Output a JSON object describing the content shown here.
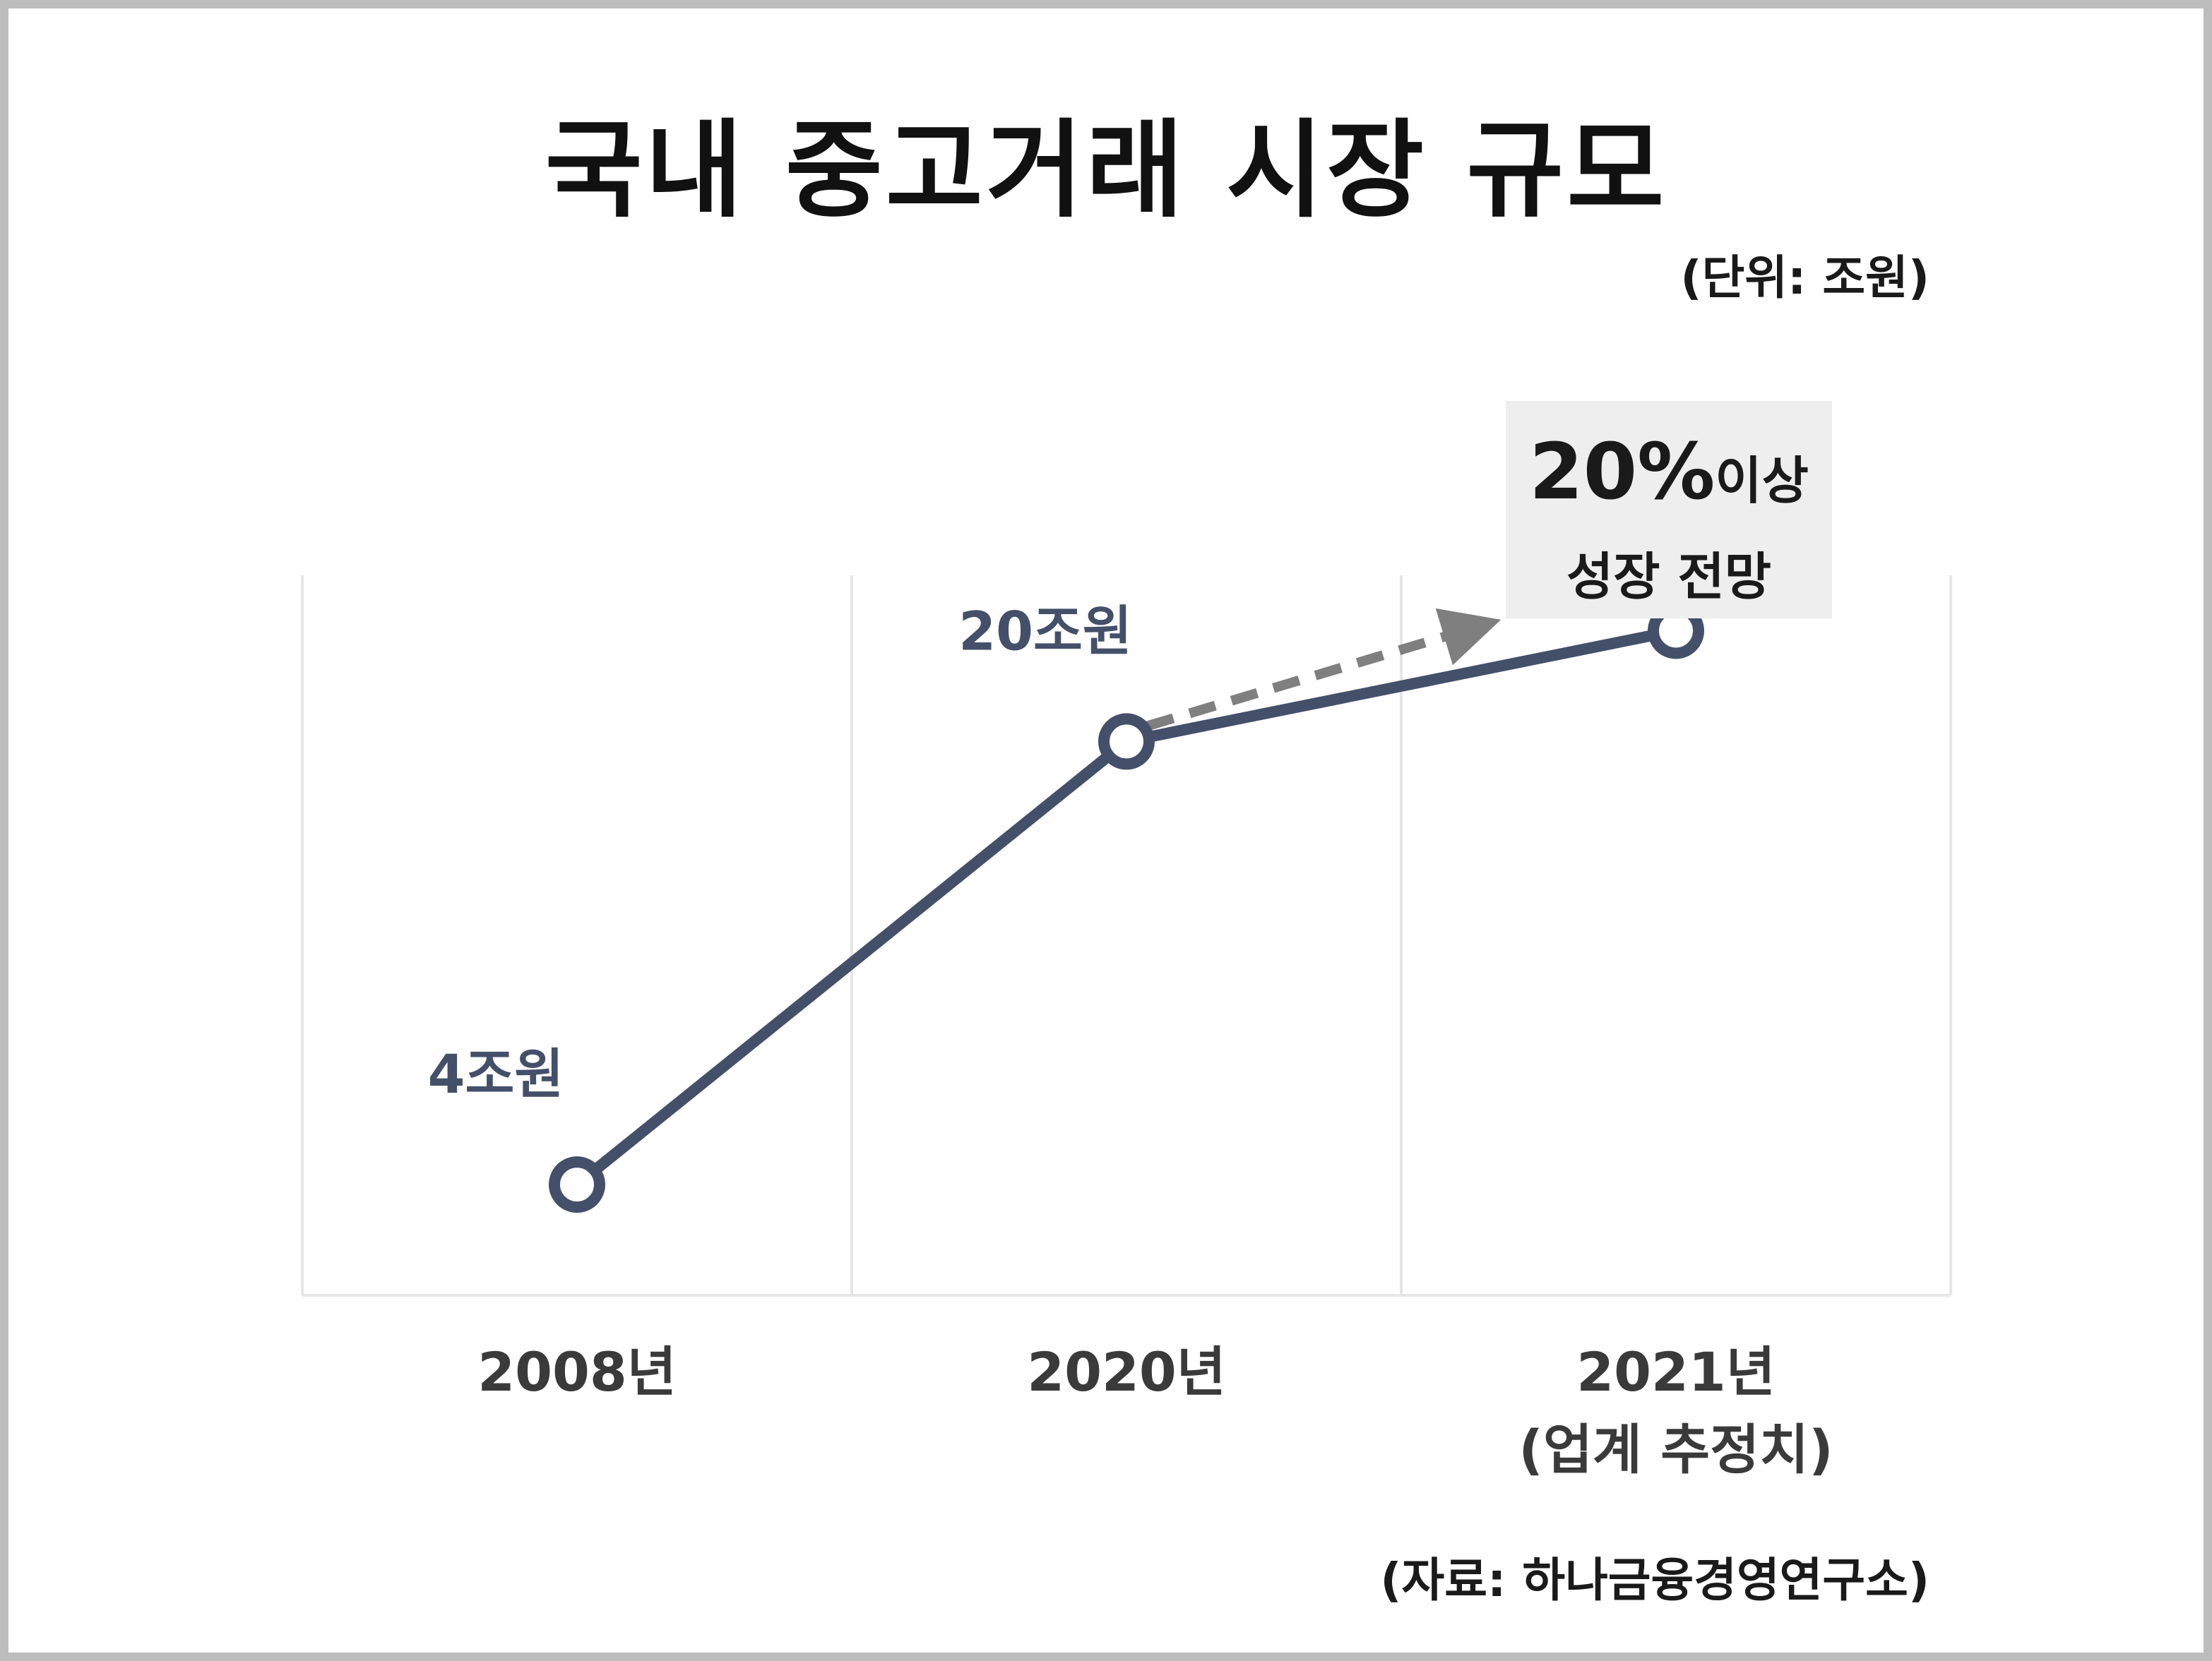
{
  "title": "국내 중고거래 시장 규모",
  "unit_note": "(단위: 조원)",
  "source_note": "(자료: 하나금융경영연구소)",
  "callout": {
    "value": "20%",
    "suffix": "이상",
    "line2": "성장 전망"
  },
  "colors": {
    "line": "#44506a",
    "arrow": "#7f7f7f",
    "grid": "#e6e6e6",
    "callout_bg": "#eeeeee"
  },
  "chart_data": {
    "type": "line",
    "title": "국내 중고거래 시장 규모",
    "categories": [
      "2008년",
      "2020년",
      "2021년"
    ],
    "category_sublabels": [
      "",
      "",
      "(업계 추정치)"
    ],
    "values": [
      4,
      20,
      24
    ],
    "data_labels": [
      "4조원",
      "20조원",
      ""
    ],
    "ylim": [
      0,
      26
    ],
    "grid": "vertical",
    "annotation": "20%이상 성장 전망"
  }
}
